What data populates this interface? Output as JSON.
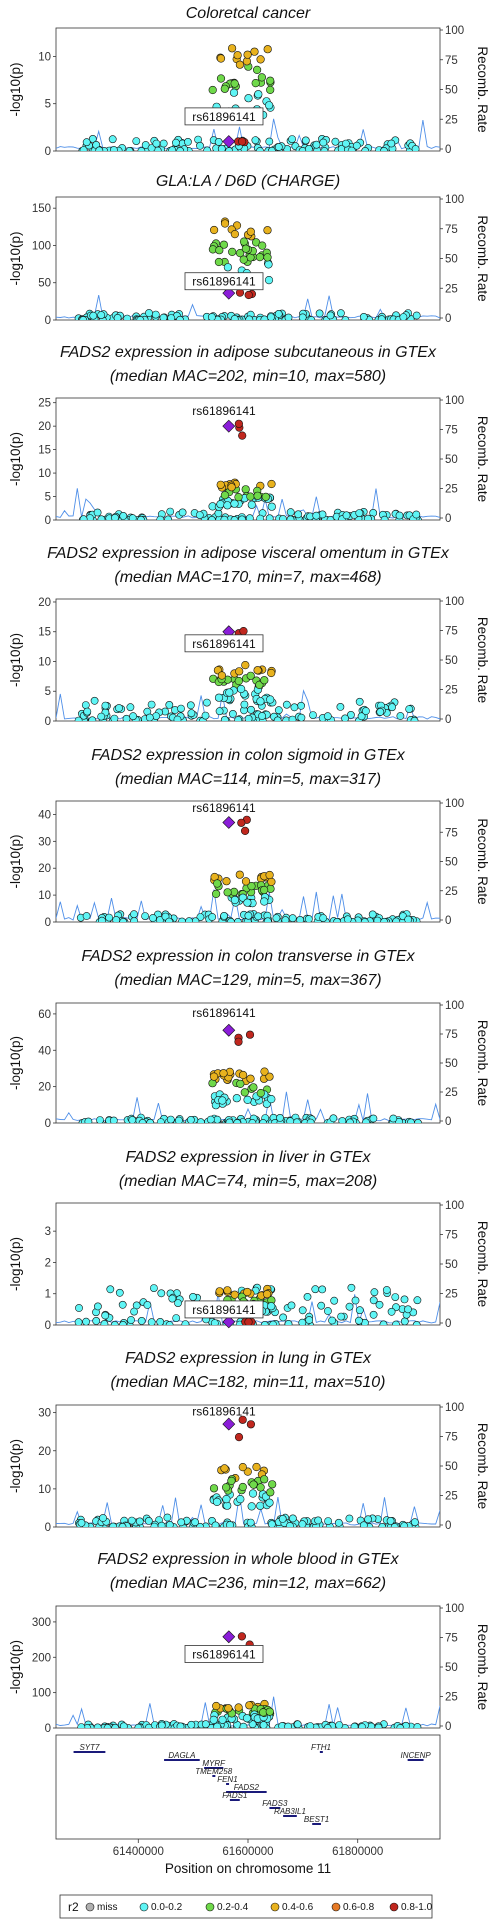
{
  "chart_data": {
    "type": "scatter",
    "lead_snp": "rs61896141",
    "xlabel": "Position on chromosome 11",
    "xlim": [
      61250000,
      61950000
    ],
    "x_ticks": [
      "61400000",
      "61600000",
      "61800000"
    ],
    "y_label_left": "-log10(p)",
    "y_label_right": "Recomb. Rate",
    "right_ticks": [
      "0",
      "25",
      "50",
      "75",
      "100"
    ],
    "legend": {
      "title": "r2",
      "entries": [
        {
          "label": "miss",
          "color": "#b0b0b0"
        },
        {
          "label": "0.0-0.2",
          "color": "#5ff5f5"
        },
        {
          "label": "0.2-0.4",
          "color": "#6fd94a"
        },
        {
          "label": "0.4-0.6",
          "color": "#e8b21e"
        },
        {
          "label": "0.6-0.8",
          "color": "#e67a26"
        },
        {
          "label": "0.8-1.0",
          "color": "#c0271e"
        }
      ],
      "lead_color": "#8a1dd8"
    },
    "panels": [
      {
        "title": "Coloretcal cancer",
        "subtitle": "",
        "ylim": [
          0,
          13
        ],
        "y_ticks": [
          0,
          5,
          10
        ],
        "peak": 10.5,
        "lead_y": 1,
        "boxed_label": true,
        "label_y": 3.5,
        "noise": 1.3
      },
      {
        "title": "GLA:LA / D6D (CHARGE)",
        "subtitle": "",
        "ylim": [
          0,
          165
        ],
        "y_ticks": [
          0,
          50,
          100,
          150
        ],
        "peak": 128,
        "lead_y": 36,
        "boxed_label": true,
        "label_y": 50,
        "noise": 10
      },
      {
        "title": "FADS2 expression in adipose subcutaneous in GTEx",
        "subtitle": "(median MAC=202, min=10, max=580)",
        "ylim": [
          0,
          26
        ],
        "y_ticks": [
          0,
          5,
          10,
          15,
          20,
          25
        ],
        "peak": 8,
        "lead_y": 20,
        "boxed_label": false,
        "label_y": 23,
        "noise": 1.8
      },
      {
        "title": "FADS2 expression in adipose visceral omentum in GTEx",
        "subtitle": "(median MAC=170, min=7, max=468)",
        "ylim": [
          0,
          20.5
        ],
        "y_ticks": [
          0,
          5,
          10,
          15,
          20
        ],
        "peak": 9,
        "lead_y": 15,
        "boxed_label": true,
        "label_y": 12.8,
        "noise": 3.5
      },
      {
        "title": "FADS2 expression in colon sigmoid in GTEx",
        "subtitle": "(median MAC=114, min=5, max=317)",
        "ylim": [
          0,
          45
        ],
        "y_ticks": [
          0,
          10,
          20,
          30,
          40
        ],
        "peak": 17,
        "lead_y": 37,
        "boxed_label": false,
        "label_y": 42,
        "noise": 3
      },
      {
        "title": "FADS2 expression in colon transverse in GTEx",
        "subtitle": "(median MAC=129, min=5, max=367)",
        "ylim": [
          0,
          66
        ],
        "y_ticks": [
          0,
          20,
          40,
          60
        ],
        "peak": 27,
        "lead_y": 51,
        "boxed_label": false,
        "label_y": 60,
        "noise": 3
      },
      {
        "title": "FADS2 expression in liver in GTEx",
        "subtitle": "(median MAC=74, min=5, max=208)",
        "ylim": [
          0,
          3.9
        ],
        "y_ticks": [
          0,
          1,
          2,
          3
        ],
        "peak": 1.1,
        "lead_y": 0.1,
        "boxed_label": true,
        "label_y": 0.45,
        "noise": 1.2
      },
      {
        "title": "FADS2 expression in lung in GTEx",
        "subtitle": "(median MAC=182, min=11, max=510)",
        "ylim": [
          0,
          32
        ],
        "y_ticks": [
          0,
          10,
          20,
          30
        ],
        "peak": 15,
        "lead_y": 27,
        "boxed_label": false,
        "label_y": 30,
        "noise": 2.5
      },
      {
        "title": "FADS2 expression in whole blood in GTEx",
        "subtitle": "(median MAC=236, min=12, max=662)",
        "ylim": [
          0,
          345
        ],
        "y_ticks": [
          0,
          100,
          200,
          300
        ],
        "peak": 65,
        "lead_y": 258,
        "boxed_label": true,
        "label_y": 205,
        "noise": 12
      }
    ],
    "genes": [
      {
        "name": "SYT7",
        "start": 61282000,
        "end": 61340000,
        "row": 0
      },
      {
        "name": "DAGLA",
        "start": 61447000,
        "end": 61512000,
        "row": 1
      },
      {
        "name": "MYRF",
        "start": 61520000,
        "end": 61555000,
        "row": 2
      },
      {
        "name": "TMEM258",
        "start": 61535000,
        "end": 61540000,
        "row": 3
      },
      {
        "name": "FEN1",
        "start": 61560000,
        "end": 61565000,
        "row": 4
      },
      {
        "name": "FADS2",
        "start": 61560000,
        "end": 61634000,
        "row": 5
      },
      {
        "name": "FADS1",
        "start": 61567000,
        "end": 61585000,
        "row": 6
      },
      {
        "name": "FADS3",
        "start": 61639000,
        "end": 61659000,
        "row": 7
      },
      {
        "name": "RAB3IL1",
        "start": 61664000,
        "end": 61689000,
        "row": 8
      },
      {
        "name": "BEST1",
        "start": 61717000,
        "end": 61733000,
        "row": 9
      },
      {
        "name": "FTH1",
        "start": 61731000,
        "end": 61735000,
        "row": 0
      },
      {
        "name": "INCENP",
        "start": 61891000,
        "end": 61920000,
        "row": 1
      }
    ]
  }
}
